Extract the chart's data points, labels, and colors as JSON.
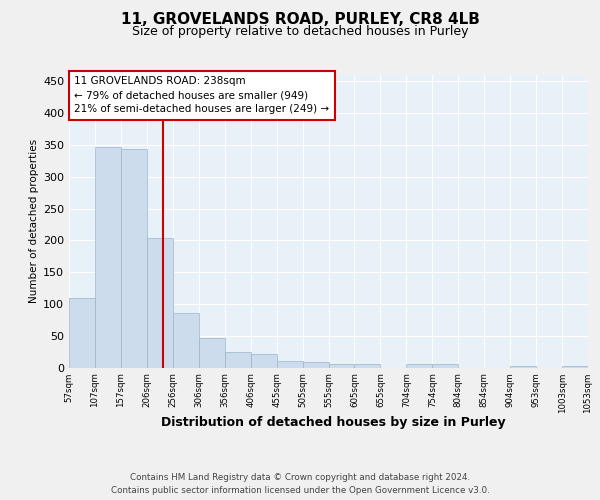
{
  "title1": "11, GROVELANDS ROAD, PURLEY, CR8 4LB",
  "title2": "Size of property relative to detached houses in Purley",
  "xlabel": "Distribution of detached houses by size in Purley",
  "ylabel": "Number of detached properties",
  "bin_labels": [
    "57sqm",
    "107sqm",
    "157sqm",
    "206sqm",
    "256sqm",
    "306sqm",
    "356sqm",
    "406sqm",
    "455sqm",
    "505sqm",
    "555sqm",
    "605sqm",
    "655sqm",
    "704sqm",
    "754sqm",
    "804sqm",
    "854sqm",
    "904sqm",
    "953sqm",
    "1003sqm",
    "1053sqm"
  ],
  "bar_heights": [
    110,
    347,
    343,
    204,
    85,
    46,
    25,
    22,
    10,
    8,
    5,
    5,
    0,
    6,
    6,
    0,
    0,
    3,
    0,
    3
  ],
  "bar_color": "#cddcec",
  "bar_edge_color": "#9ab5ce",
  "vline_color": "#cc0000",
  "annotation_box_color": "#cc0000",
  "annotation_text": "11 GROVELANDS ROAD: 238sqm\n← 79% of detached houses are smaller (949)\n21% of semi-detached houses are larger (249) →",
  "footer": "Contains HM Land Registry data © Crown copyright and database right 2024.\nContains public sector information licensed under the Open Government Licence v3.0.",
  "ylim": [
    0,
    460
  ],
  "yticks": [
    0,
    50,
    100,
    150,
    200,
    250,
    300,
    350,
    400,
    450
  ],
  "background_color": "#e8f0f8",
  "grid_color": "#ffffff",
  "fig_bg_color": "#f0f0f0",
  "bin_edges": [
    57,
    107,
    157,
    206,
    256,
    306,
    356,
    406,
    455,
    505,
    555,
    605,
    655,
    704,
    754,
    804,
    854,
    904,
    953,
    1003,
    1053
  ],
  "property_value": 238
}
